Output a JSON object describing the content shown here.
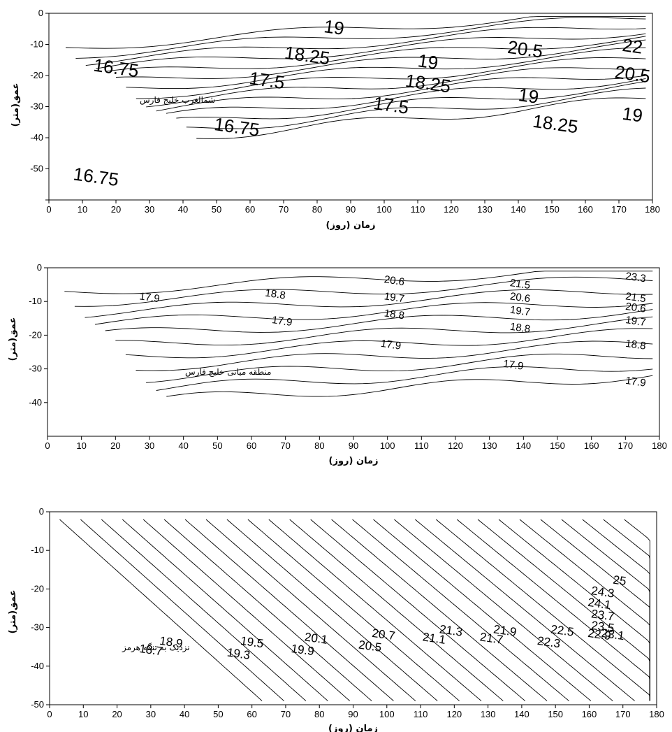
{
  "chart_data": [
    {
      "type": "contour",
      "region_label": "شمالغرب خلیج فارس",
      "xlabel": "زمان (روز)",
      "ylabel": "عمق(متر)",
      "xlim": [
        0,
        180
      ],
      "ylim": [
        -60,
        0
      ],
      "x_ticks": [
        "0",
        "10",
        "20",
        "30",
        "40",
        "50",
        "60",
        "70",
        "80",
        "90",
        "100",
        "110",
        "120",
        "130",
        "140",
        "150",
        "160",
        "170",
        "180"
      ],
      "y_ticks": [
        "0",
        "-10",
        "-20",
        "-30",
        "-40",
        "-50",
        ""
      ],
      "contour_labels": [
        {
          "text": "16.75",
          "x": 20,
          "y": -18
        },
        {
          "text": "18.25",
          "x": 77,
          "y": -14
        },
        {
          "text": "19",
          "x": 85,
          "y": -5
        },
        {
          "text": "17.5",
          "x": 65,
          "y": -22
        },
        {
          "text": "19",
          "x": 113,
          "y": -16
        },
        {
          "text": "18.25",
          "x": 113,
          "y": -23
        },
        {
          "text": "20.5",
          "x": 142,
          "y": -12
        },
        {
          "text": "22",
          "x": 174,
          "y": -11
        },
        {
          "text": "20.5",
          "x": 174,
          "y": -20
        },
        {
          "text": "19",
          "x": 143,
          "y": -27
        },
        {
          "text": "17.5",
          "x": 102,
          "y": -30
        },
        {
          "text": "18.25",
          "x": 151,
          "y": -36
        },
        {
          "text": "19",
          "x": 174,
          "y": -33
        },
        {
          "text": "16.75",
          "x": 56,
          "y": -37
        },
        {
          "text": "16.75",
          "x": 14,
          "y": -53
        }
      ]
    },
    {
      "type": "contour",
      "region_label": "منطقه میانی خلیج فارس",
      "xlabel": "زمان (روز)",
      "ylabel": "عمق(متر)",
      "xlim": [
        0,
        180
      ],
      "ylim": [
        -50,
        0
      ],
      "x_ticks": [
        "0",
        "10",
        "20",
        "30",
        "40",
        "50",
        "60",
        "70",
        "80",
        "90",
        "100",
        "110",
        "120",
        "130",
        "140",
        "150",
        "160",
        "170",
        "180"
      ],
      "y_ticks": [
        "0",
        "-10",
        "-20",
        "-30",
        "-40"
      ],
      "contour_labels": [
        {
          "text": "17.9",
          "x": 30,
          "y": -9
        },
        {
          "text": "18.8",
          "x": 67,
          "y": -8
        },
        {
          "text": "17.9",
          "x": 69,
          "y": -16
        },
        {
          "text": "20.6",
          "x": 102,
          "y": -4
        },
        {
          "text": "19.7",
          "x": 102,
          "y": -9
        },
        {
          "text": "18.8",
          "x": 102,
          "y": -14
        },
        {
          "text": "17.9",
          "x": 101,
          "y": -23
        },
        {
          "text": "21.5",
          "x": 139,
          "y": -5
        },
        {
          "text": "20.6",
          "x": 139,
          "y": -9
        },
        {
          "text": "19.7",
          "x": 139,
          "y": -13
        },
        {
          "text": "18.8",
          "x": 139,
          "y": -18
        },
        {
          "text": "17.9",
          "x": 137,
          "y": -29
        },
        {
          "text": "23.3",
          "x": 173,
          "y": -3
        },
        {
          "text": "21.5",
          "x": 173,
          "y": -9
        },
        {
          "text": "20.6",
          "x": 173,
          "y": -12
        },
        {
          "text": "19.7",
          "x": 173,
          "y": -16
        },
        {
          "text": "18.8",
          "x": 173,
          "y": -23
        },
        {
          "text": "17.9",
          "x": 173,
          "y": -34
        }
      ]
    },
    {
      "type": "contour",
      "region_label": "نزدیک به تنگه هرمز",
      "xlabel": "زمان (روز)",
      "ylabel": "عمق(متر)",
      "xlim": [
        0,
        180
      ],
      "ylim": [
        -50,
        0
      ],
      "x_ticks": [
        "0",
        "10",
        "20",
        "30",
        "40",
        "50",
        "60",
        "70",
        "80",
        "90",
        "100",
        "110",
        "120",
        "130",
        "140",
        "150",
        "160",
        "170",
        "180"
      ],
      "y_ticks": [
        "0",
        "-10",
        "-20",
        "-30",
        "-40",
        "-50"
      ],
      "contour_labels": [
        {
          "text": "18.7",
          "x": 30,
          "y": -36
        },
        {
          "text": "18.9",
          "x": 36,
          "y": -34
        },
        {
          "text": "19.3",
          "x": 56,
          "y": -37
        },
        {
          "text": "19.5",
          "x": 60,
          "y": -34
        },
        {
          "text": "19.9",
          "x": 75,
          "y": -36
        },
        {
          "text": "20.1",
          "x": 79,
          "y": -33
        },
        {
          "text": "20.5",
          "x": 95,
          "y": -35
        },
        {
          "text": "20.7",
          "x": 99,
          "y": -32
        },
        {
          "text": "21.1",
          "x": 114,
          "y": -33
        },
        {
          "text": "21.3",
          "x": 119,
          "y": -31
        },
        {
          "text": "21.7",
          "x": 131,
          "y": -33
        },
        {
          "text": "21.9",
          "x": 135,
          "y": -31
        },
        {
          "text": "22.3",
          "x": 148,
          "y": -34
        },
        {
          "text": "22.5",
          "x": 152,
          "y": -31
        },
        {
          "text": "22.9",
          "x": 163,
          "y": -32
        },
        {
          "text": "23.1",
          "x": 167,
          "y": -32
        },
        {
          "text": "25",
          "x": 169,
          "y": -18
        },
        {
          "text": "24.3",
          "x": 164,
          "y": -21
        },
        {
          "text": "24.1",
          "x": 163,
          "y": -24
        },
        {
          "text": "23.7",
          "x": 164,
          "y": -27
        },
        {
          "text": "23.5",
          "x": 164,
          "y": -30
        }
      ]
    }
  ]
}
